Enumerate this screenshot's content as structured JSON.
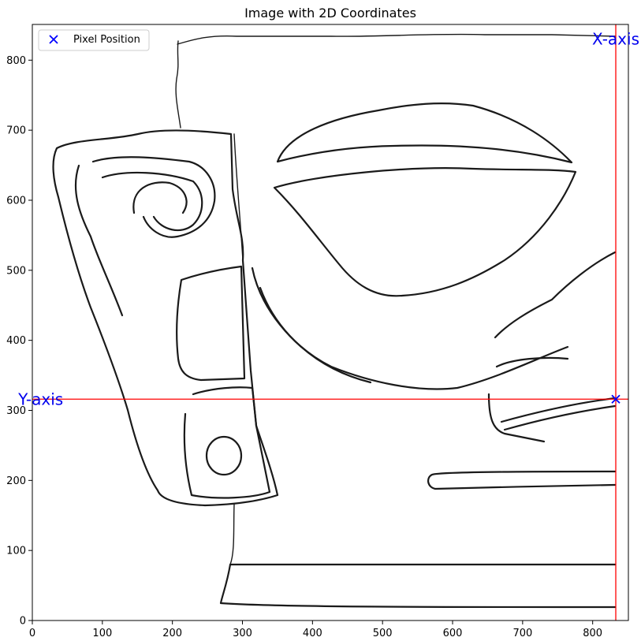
{
  "chart_data": {
    "type": "scatter",
    "title": "Image with 2D Coordinates",
    "xlabel": "",
    "ylabel": "",
    "xlim": [
      0,
      851
    ],
    "ylim": [
      0,
      851
    ],
    "x_ticks": [
      0,
      100,
      200,
      300,
      400,
      500,
      600,
      700,
      800
    ],
    "y_ticks": [
      0,
      100,
      200,
      300,
      400,
      500,
      600,
      700,
      800
    ],
    "grid": false,
    "legend_position": "top-left",
    "series": [
      {
        "name": "Pixel Position",
        "marker": "x",
        "color": "#0000ff",
        "points": [
          [
            833,
            316
          ]
        ]
      }
    ],
    "crosshair": {
      "x": 833,
      "y": 316,
      "color": "#ff0000"
    },
    "annotations": [
      {
        "text": "X-axis",
        "x": 833,
        "y": 830
      },
      {
        "text": "Y-axis",
        "x": 12,
        "y": 316
      }
    ],
    "background_image": "black-and-white line drawing of a carved stone face fragment (eye and spiral ear motif)"
  }
}
